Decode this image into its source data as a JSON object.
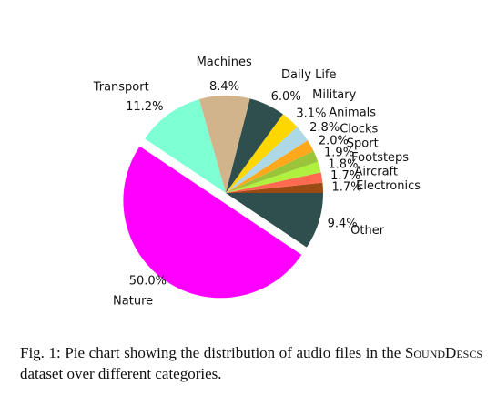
{
  "chart_data": {
    "type": "pie",
    "start_angle_deg": 0,
    "direction": "counterclockwise",
    "slices": [
      {
        "label": "Electronics",
        "pct_label": "1.7%",
        "value": 1.7,
        "color": "#9a4a12",
        "explode": false
      },
      {
        "label": "Aircraft",
        "pct_label": "1.7%",
        "value": 1.7,
        "color": "#ff6a50",
        "explode": false
      },
      {
        "label": "Footsteps",
        "pct_label": "1.8%",
        "value": 1.8,
        "color": "#b0f03e",
        "explode": false
      },
      {
        "label": "Sport",
        "pct_label": "1.9%",
        "value": 1.9,
        "color": "#9ac43a",
        "explode": false
      },
      {
        "label": "Clocks",
        "pct_label": "2.0%",
        "value": 2.0,
        "color": "#ffa81c",
        "explode": false
      },
      {
        "label": "Animals",
        "pct_label": "2.8%",
        "value": 2.8,
        "color": "#add8e6",
        "explode": false
      },
      {
        "label": "Military",
        "pct_label": "3.1%",
        "value": 3.1,
        "color": "#ffd700",
        "explode": false
      },
      {
        "label": "Daily Life",
        "pct_label": "6.0%",
        "value": 6.0,
        "color": "#2f4f4f",
        "explode": false
      },
      {
        "label": "Machines",
        "pct_label": "8.4%",
        "value": 8.4,
        "color": "#d2b48c",
        "explode": false
      },
      {
        "label": "Transport",
        "pct_label": "11.2%",
        "value": 11.2,
        "color": "#7fffd4",
        "explode": false
      },
      {
        "label": "Nature",
        "pct_label": "50.0%",
        "value": 50.0,
        "color": "#ff00ff",
        "explode": true
      },
      {
        "label": "Other",
        "pct_label": "9.4%",
        "value": 9.4,
        "color": "#2f4f4f",
        "explode": false
      }
    ]
  },
  "caption": {
    "prefix": "Fig. 1: Pie chart showing the distribution of audio files in the",
    "dataset_name": "SoundDescs",
    "suffix": "dataset over different categories."
  }
}
